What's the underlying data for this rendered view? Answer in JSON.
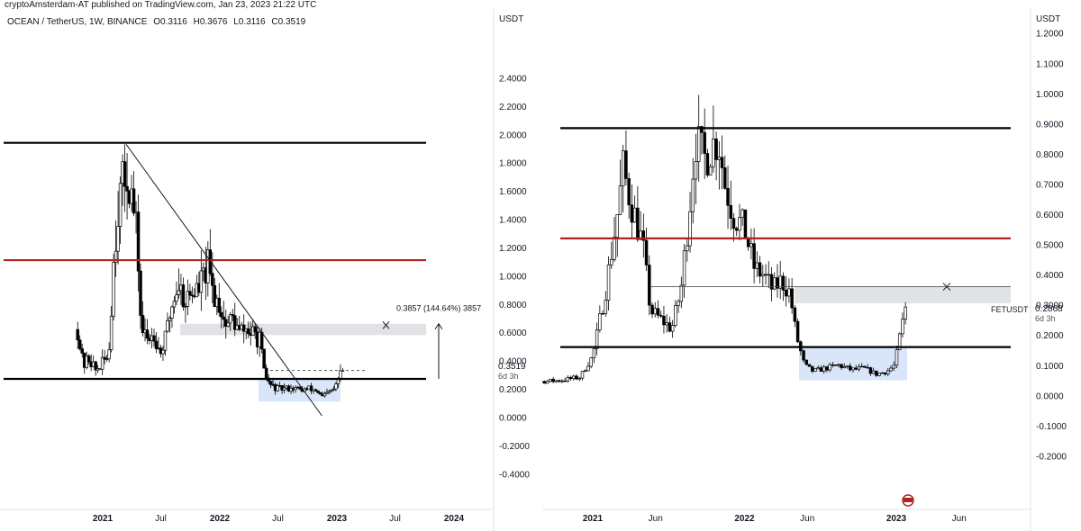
{
  "header": {
    "publisher": "cryptoAmsterdam-AT published on TradingView.com, Jan 23, 2023 21:22 UTC"
  },
  "symbol_info": {
    "pair": "OCEAN / TetherUS, 1W, BINANCE",
    "open": "O0.3116",
    "high": "H0.3676",
    "low": "L0.3116",
    "close": "C0.3519"
  },
  "chart_data": [
    {
      "type": "candlestick",
      "symbol": "OCEAN / TetherUS, 1W, BINANCE",
      "axis_unit": "USDT",
      "ylim": [
        -0.5,
        2.6
      ],
      "y_ticks": [
        "2.4000",
        "2.2000",
        "2.0000",
        "1.8000",
        "1.6000",
        "1.4000",
        "1.2000",
        "1.0000",
        "0.8000",
        "0.6000",
        "0.4000",
        "0.2000",
        "0.0000",
        "-0.2000",
        "-0.4000"
      ],
      "y_tick_values": [
        2.4,
        2.2,
        2.0,
        1.8,
        1.6,
        1.4,
        1.2,
        1.0,
        0.8,
        0.6,
        0.4,
        0.2,
        0.0,
        -0.2,
        -0.4
      ],
      "x_ticks": [
        "2021",
        "Jul",
        "2022",
        "Jul",
        "2023",
        "Jul",
        "2024"
      ],
      "x_tick_dates": [
        "2021-01-01",
        "2021-07-01",
        "2022-01-01",
        "2022-07-01",
        "2023-01-01",
        "2023-07-01",
        "2024-01-01"
      ],
      "last_price": "0.3519",
      "countdown": "6d 3h",
      "measure_label": "0.3857 (144.64%) 3857",
      "horizontal_levels": [
        {
          "value": 1.94,
          "color": "#000000"
        },
        {
          "value": 1.11,
          "color": "#b22222"
        },
        {
          "value": 0.27,
          "color": "#000000"
        }
      ],
      "resistance_zone": [
        0.58,
        0.66
      ],
      "accumulation_zone": [
        0.11,
        0.27
      ],
      "trendline": {
        "from": [
          "2021-03-15",
          1.93
        ],
        "to": [
          "2022-11-15",
          0.01
        ]
      },
      "dashed_level": 0.33,
      "weekly_close_path": [
        [
          "2020-10-15",
          0.62
        ],
        [
          "2020-11-01",
          0.36
        ],
        [
          "2020-11-20",
          0.42
        ],
        [
          "2020-12-10",
          0.33
        ],
        [
          "2021-01-01",
          0.38
        ],
        [
          "2021-01-20",
          0.45
        ],
        [
          "2021-02-05",
          1.15
        ],
        [
          "2021-02-20",
          1.55
        ],
        [
          "2021-03-05",
          1.62
        ],
        [
          "2021-03-20",
          1.75
        ],
        [
          "2021-04-05",
          1.5
        ],
        [
          "2021-04-20",
          1.2
        ],
        [
          "2021-05-01",
          0.62
        ],
        [
          "2021-05-20",
          0.55
        ],
        [
          "2021-06-10",
          0.6
        ],
        [
          "2021-06-30",
          0.45
        ],
        [
          "2021-07-15",
          0.55
        ],
        [
          "2021-08-05",
          0.8
        ],
        [
          "2021-08-25",
          0.95
        ],
        [
          "2021-09-15",
          0.82
        ],
        [
          "2021-10-05",
          0.88
        ],
        [
          "2021-10-25",
          0.9
        ],
        [
          "2021-11-10",
          0.98
        ],
        [
          "2021-11-25",
          1.06
        ],
        [
          "2021-12-10",
          0.88
        ],
        [
          "2022-01-01",
          0.8
        ],
        [
          "2022-01-20",
          0.65
        ],
        [
          "2022-02-10",
          0.7
        ],
        [
          "2022-03-01",
          0.6
        ],
        [
          "2022-03-25",
          0.62
        ],
        [
          "2022-04-15",
          0.58
        ],
        [
          "2022-05-05",
          0.55
        ],
        [
          "2022-05-20",
          0.3
        ],
        [
          "2022-06-10",
          0.22
        ],
        [
          "2022-06-30",
          0.2
        ],
        [
          "2022-07-20",
          0.2
        ],
        [
          "2022-08-15",
          0.21
        ],
        [
          "2022-09-10",
          0.19
        ],
        [
          "2022-10-05",
          0.2
        ],
        [
          "2022-10-30",
          0.19
        ],
        [
          "2022-11-15",
          0.14
        ],
        [
          "2022-12-05",
          0.17
        ],
        [
          "2022-12-25",
          0.2
        ],
        [
          "2023-01-10",
          0.3
        ],
        [
          "2023-01-23",
          0.35
        ]
      ]
    },
    {
      "type": "candlestick",
      "symbol": "FETUSDT",
      "axis_unit": "USDT",
      "ylim": [
        -0.3,
        1.22
      ],
      "y_ticks": [
        "1.2000",
        "1.1000",
        "1.0000",
        "0.9000",
        "0.8000",
        "0.7000",
        "0.6000",
        "0.5000",
        "0.4000",
        "0.3000",
        "0.2000",
        "0.1000",
        "0.0000",
        "-0.1000",
        "-0.2000"
      ],
      "y_tick_values": [
        1.2,
        1.1,
        1.0,
        0.9,
        0.8,
        0.7,
        0.6,
        0.5,
        0.4,
        0.3,
        0.2,
        0.1,
        0.0,
        -0.1,
        -0.2
      ],
      "x_ticks": [
        "2021",
        "Jun",
        "2022",
        "Jun",
        "2023",
        "Jun"
      ],
      "x_tick_dates": [
        "2021-01-01",
        "2021-06-01",
        "2022-01-01",
        "2022-06-01",
        "2023-01-01",
        "2023-06-01"
      ],
      "last_symbol": "FETUSDT",
      "last_price": "0.2868",
      "countdown": "6d 3h",
      "horizontal_levels": [
        {
          "value": 0.885,
          "color": "#000000"
        },
        {
          "value": 0.52,
          "color": "#b22222"
        },
        {
          "value": 0.16,
          "color": "#000000"
        }
      ],
      "resistance_zone": [
        0.305,
        0.36
      ],
      "accumulation_zone": [
        0.05,
        0.16
      ],
      "thin_level": 0.36,
      "weekly_close_path": [
        [
          "2020-06-01",
          0.085
        ],
        [
          "2020-07-15",
          0.06
        ],
        [
          "2020-09-01",
          0.045
        ],
        [
          "2020-10-15",
          0.05
        ],
        [
          "2020-12-01",
          0.06
        ],
        [
          "2021-01-01",
          0.13
        ],
        [
          "2021-02-01",
          0.35
        ],
        [
          "2021-03-01",
          0.6
        ],
        [
          "2021-03-15",
          0.75
        ],
        [
          "2021-04-01",
          0.65
        ],
        [
          "2021-05-01",
          0.5
        ],
        [
          "2021-05-20",
          0.28
        ],
        [
          "2021-06-15",
          0.25
        ],
        [
          "2021-07-10",
          0.22
        ],
        [
          "2021-08-01",
          0.35
        ],
        [
          "2021-08-20",
          0.6
        ],
        [
          "2021-09-05",
          0.85
        ],
        [
          "2021-09-25",
          0.78
        ],
        [
          "2021-10-10",
          0.82
        ],
        [
          "2021-10-30",
          0.85
        ],
        [
          "2021-11-15",
          0.7
        ],
        [
          "2021-12-05",
          0.6
        ],
        [
          "2022-01-01",
          0.55
        ],
        [
          "2022-01-25",
          0.42
        ],
        [
          "2022-02-15",
          0.4
        ],
        [
          "2022-03-10",
          0.35
        ],
        [
          "2022-03-30",
          0.38
        ],
        [
          "2022-04-20",
          0.34
        ],
        [
          "2022-05-05",
          0.2
        ],
        [
          "2022-05-25",
          0.1
        ],
        [
          "2022-06-15",
          0.08
        ],
        [
          "2022-07-15",
          0.09
        ],
        [
          "2022-08-15",
          0.1
        ],
        [
          "2022-09-15",
          0.085
        ],
        [
          "2022-10-15",
          0.09
        ],
        [
          "2022-11-15",
          0.07
        ],
        [
          "2022-12-10",
          0.08
        ],
        [
          "2022-12-28",
          0.1
        ],
        [
          "2023-01-10",
          0.2
        ],
        [
          "2023-01-23",
          0.29
        ]
      ]
    }
  ]
}
